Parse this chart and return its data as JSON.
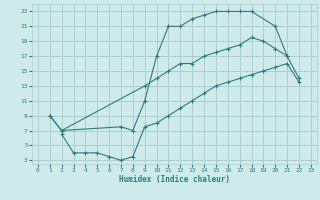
{
  "xlabel": "Humidex (Indice chaleur)",
  "bg_color": "#ceeaea",
  "line_color": "#2d7d7d",
  "grid_color": "#aacece",
  "xlim": [
    -0.5,
    23.5
  ],
  "ylim": [
    2.5,
    24
  ],
  "xticks": [
    0,
    1,
    2,
    3,
    4,
    5,
    6,
    7,
    8,
    9,
    10,
    11,
    12,
    13,
    14,
    15,
    16,
    17,
    18,
    19,
    20,
    21,
    22,
    23
  ],
  "yticks": [
    3,
    5,
    7,
    9,
    11,
    13,
    15,
    17,
    19,
    21,
    23
  ],
  "curve1_x": [
    1,
    2,
    7,
    8,
    9,
    10,
    11,
    12,
    13,
    14,
    15,
    16,
    17,
    18,
    20,
    21
  ],
  "curve1_y": [
    9,
    7,
    7.5,
    7,
    11,
    17,
    21,
    21,
    22,
    22.5,
    23,
    23,
    23,
    23,
    21,
    17
  ],
  "curve2_x": [
    1,
    2,
    9,
    10,
    11,
    12,
    13,
    14,
    15,
    16,
    17,
    18,
    19,
    20,
    21,
    22
  ],
  "curve2_y": [
    9,
    7,
    13,
    14,
    15,
    16,
    16,
    17,
    17.5,
    18,
    18.5,
    19.5,
    19,
    18,
    17,
    14
  ],
  "curve3_x": [
    2,
    3,
    4,
    5,
    6,
    7,
    8,
    9,
    10,
    11,
    12,
    13,
    14,
    15,
    16,
    17,
    18,
    19,
    20,
    21,
    22
  ],
  "curve3_y": [
    6.5,
    4,
    4,
    4,
    3.5,
    3,
    3.5,
    7.5,
    8,
    9,
    10,
    11,
    12,
    13,
    13.5,
    14,
    14.5,
    15,
    15.5,
    16,
    13.5
  ]
}
